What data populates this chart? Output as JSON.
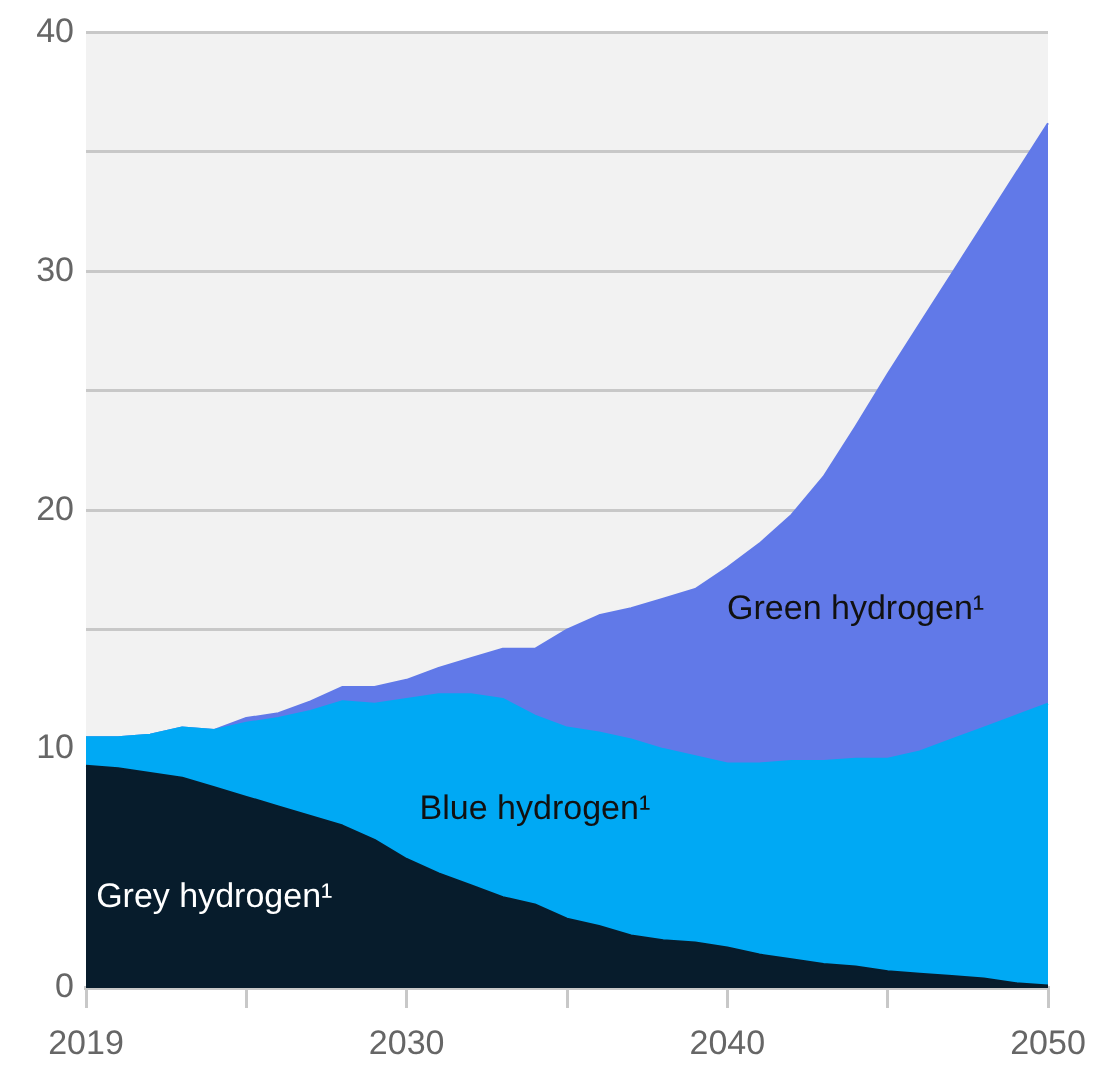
{
  "chart_data": {
    "type": "area",
    "stacked": true,
    "categories": [
      "2019",
      null,
      null,
      null,
      null,
      null,
      null,
      null,
      null,
      null,
      "2030",
      null,
      null,
      null,
      null,
      null,
      null,
      null,
      null,
      null,
      "2040",
      null,
      null,
      null,
      null,
      null,
      null,
      null,
      null,
      null,
      "2050"
    ],
    "series": [
      {
        "name": "Grey hydrogen¹",
        "color": "#071c2c",
        "values": [
          9.3,
          9.2,
          9.0,
          8.8,
          8.4,
          8.0,
          7.6,
          7.2,
          6.8,
          6.2,
          5.4,
          4.8,
          4.3,
          3.8,
          3.5,
          2.9,
          2.6,
          2.2,
          2.0,
          1.9,
          1.7,
          1.4,
          1.2,
          1.0,
          0.9,
          0.7,
          0.6,
          0.5,
          0.4,
          0.2,
          0.1
        ]
      },
      {
        "name": "Blue hydrogen¹",
        "color": "#00a9f4",
        "values": [
          1.2,
          1.3,
          1.6,
          2.1,
          2.4,
          3.1,
          3.7,
          4.4,
          5.2,
          5.7,
          6.7,
          7.5,
          8.0,
          8.3,
          7.9,
          8.0,
          8.1,
          8.2,
          8.0,
          7.8,
          7.7,
          8.0,
          8.3,
          8.5,
          8.7,
          8.9,
          9.3,
          9.9,
          10.5,
          11.2,
          11.8
        ]
      },
      {
        "name": "Green hydrogen¹",
        "color": "#6179e8",
        "values": [
          0,
          0,
          0,
          0,
          0,
          0.2,
          0.2,
          0.4,
          0.6,
          0.7,
          0.8,
          1.1,
          1.5,
          2.1,
          2.8,
          4.1,
          4.9,
          5.5,
          6.3,
          7.0,
          8.2,
          9.2,
          10.3,
          11.9,
          13.9,
          16.1,
          17.9,
          19.5,
          21.1,
          22.7,
          24.3
        ]
      }
    ],
    "ylim": [
      0,
      40
    ],
    "yticks": [
      0,
      10,
      {
        "value": 15,
        "label": null
      },
      20,
      {
        "value": 25,
        "label": null
      },
      30,
      {
        "value": 35,
        "label": null
      },
      40
    ],
    "grid": "y",
    "marker": "none"
  }
}
